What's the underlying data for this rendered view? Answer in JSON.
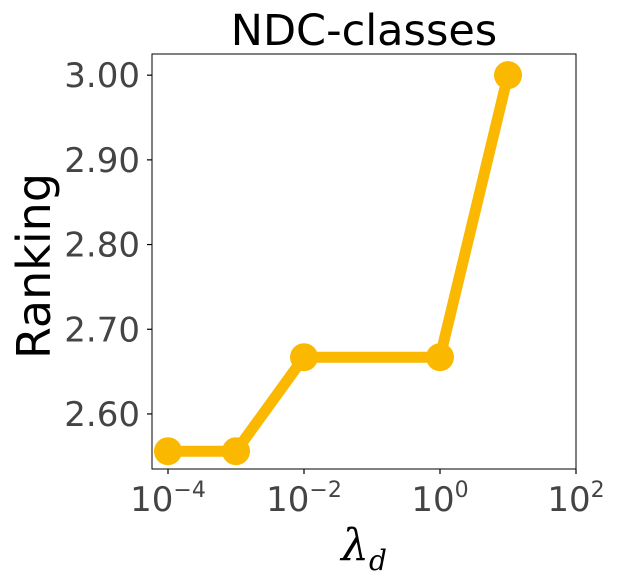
{
  "chart_data": {
    "type": "line",
    "title": "NDC-classes",
    "ylabel": "Ranking",
    "xlabel_main": "λ",
    "xlabel_sub": "d",
    "x_scale": "log",
    "xlim": [
      0.0001,
      100
    ],
    "ylim": [
      2.535,
      3.025
    ],
    "x_ticks": [
      {
        "base": "10",
        "exp": "−4",
        "value": 0.0001
      },
      {
        "base": "10",
        "exp": "−2",
        "value": 0.01
      },
      {
        "base": "10",
        "exp": "0",
        "value": 1
      },
      {
        "base": "10",
        "exp": "2",
        "value": 100
      }
    ],
    "y_ticks": [
      {
        "label": "2.60",
        "value": 2.6
      },
      {
        "label": "2.70",
        "value": 2.7
      },
      {
        "label": "2.80",
        "value": 2.8
      },
      {
        "label": "2.90",
        "value": 2.9
      },
      {
        "label": "3.00",
        "value": 3.0
      }
    ],
    "grid": false,
    "series": [
      {
        "color": "#FBB800",
        "x": [
          0.0001,
          0.001,
          0.01,
          1,
          10
        ],
        "y": [
          2.556,
          2.556,
          2.667,
          2.667,
          3.0
        ]
      }
    ]
  }
}
